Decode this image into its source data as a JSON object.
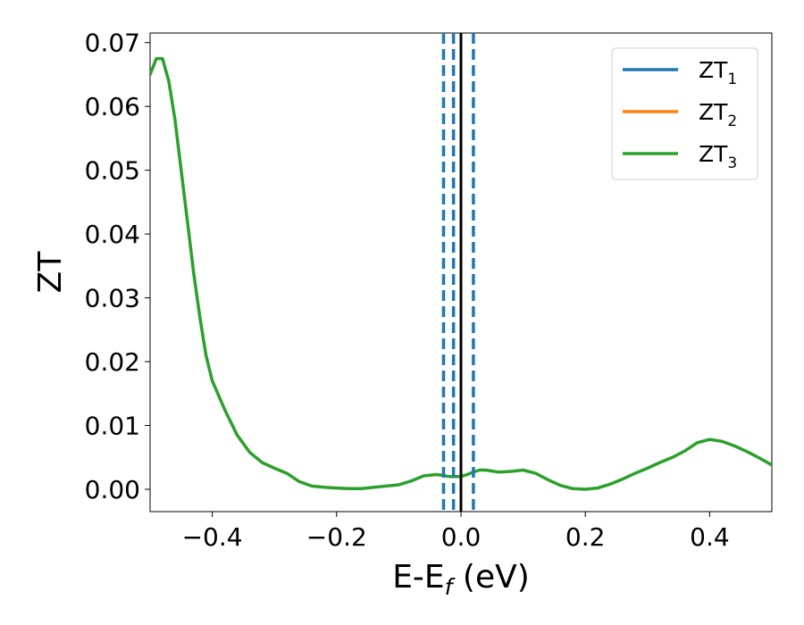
{
  "chart_data": {
    "type": "line",
    "xlabel": {
      "main": "E-E",
      "sub": "f",
      "unit": " (eV)"
    },
    "ylabel": "ZT",
    "xlim": [
      -0.5,
      0.5
    ],
    "ylim": [
      -0.0035,
      0.0715
    ],
    "x_ticks": [
      -0.4,
      -0.2,
      0.0,
      0.2,
      0.4
    ],
    "x_tick_labels": [
      "−0.4",
      "−0.2",
      "0.0",
      "0.2",
      "0.4"
    ],
    "y_ticks": [
      0.0,
      0.01,
      0.02,
      0.03,
      0.04,
      0.05,
      0.06,
      0.07
    ],
    "y_tick_labels": [
      "0.00",
      "0.01",
      "0.02",
      "0.03",
      "0.04",
      "0.05",
      "0.06",
      "0.07"
    ],
    "grid": false,
    "legend_position": "top-right",
    "series": [
      {
        "name": "ZT",
        "sub": "1",
        "color": "#1f77b4",
        "values": []
      },
      {
        "name": "ZT",
        "sub": "2",
        "color": "#ff7f0e",
        "values": []
      },
      {
        "name": "ZT",
        "sub": "3",
        "color": "#2ca02c",
        "x": [
          -0.5,
          -0.49,
          -0.48,
          -0.47,
          -0.46,
          -0.45,
          -0.44,
          -0.43,
          -0.42,
          -0.41,
          -0.4,
          -0.38,
          -0.36,
          -0.34,
          -0.32,
          -0.3,
          -0.28,
          -0.26,
          -0.24,
          -0.22,
          -0.2,
          -0.18,
          -0.16,
          -0.14,
          -0.12,
          -0.1,
          -0.08,
          -0.06,
          -0.04,
          -0.03,
          -0.02,
          -0.01,
          0.0,
          0.01,
          0.02,
          0.03,
          0.04,
          0.06,
          0.08,
          0.1,
          0.12,
          0.14,
          0.16,
          0.18,
          0.2,
          0.21,
          0.22,
          0.24,
          0.26,
          0.28,
          0.3,
          0.32,
          0.34,
          0.36,
          0.38,
          0.4,
          0.42,
          0.44,
          0.46,
          0.48,
          0.5
        ],
        "values": [
          0.065,
          0.0675,
          0.0675,
          0.064,
          0.058,
          0.05,
          0.042,
          0.034,
          0.027,
          0.021,
          0.017,
          0.0125,
          0.0085,
          0.0058,
          0.0042,
          0.0033,
          0.0025,
          0.0012,
          0.0005,
          0.0003,
          0.0002,
          0.0001,
          0.0001,
          0.0003,
          0.0005,
          0.0007,
          0.0013,
          0.0021,
          0.0023,
          0.0022,
          0.002,
          0.002,
          0.002,
          0.0023,
          0.0027,
          0.003,
          0.003,
          0.0027,
          0.0028,
          0.003,
          0.0025,
          0.0015,
          0.0006,
          0.0001,
          0.0,
          0.0001,
          0.0002,
          0.0008,
          0.0016,
          0.0025,
          0.0033,
          0.0042,
          0.005,
          0.006,
          0.0073,
          0.0078,
          0.0075,
          0.0068,
          0.0059,
          0.0049,
          0.0038
        ]
      }
    ],
    "vertical_lines": [
      {
        "x": 0.0,
        "color": "#000000",
        "style": "solid"
      },
      {
        "x": -0.012,
        "color": "#1f77b4",
        "style": "dashed"
      },
      {
        "x": -0.028,
        "color": "#1f77b4",
        "style": "dashed"
      },
      {
        "x": 0.02,
        "color": "#1f77b4",
        "style": "dashed"
      }
    ]
  }
}
